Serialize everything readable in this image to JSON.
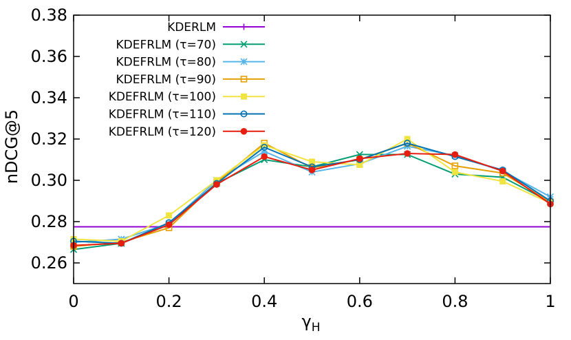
{
  "chart_data": {
    "type": "line",
    "xlabel": "γ",
    "xlabel_subscript": "H",
    "ylabel": "nDCG@5",
    "xlim": [
      0,
      1
    ],
    "ylim": [
      0.25,
      0.38
    ],
    "xticks": [
      0,
      0.2,
      0.4,
      0.6,
      0.8,
      1
    ],
    "xtick_labels": [
      "0",
      "0.2",
      "0.4",
      "0.6",
      "0.8",
      "1"
    ],
    "yticks": [
      0.26,
      0.28,
      0.3,
      0.32,
      0.34,
      0.36,
      0.38
    ],
    "ytick_labels": [
      "0.26",
      "0.28",
      "0.30",
      "0.32",
      "0.34",
      "0.36",
      "0.38"
    ],
    "legend_position": "top-left",
    "x": [
      0,
      0.1,
      0.2,
      0.3,
      0.4,
      0.5,
      0.6,
      0.7,
      0.8,
      0.9,
      1.0
    ],
    "series": [
      {
        "name": "KDERLM",
        "color": "#9400d3",
        "marker": "plus",
        "baseline": 0.2775
      },
      {
        "name": "KDEFRLM (τ=70)",
        "color": "#009e73",
        "marker": "x",
        "values": [
          0.2665,
          0.2695,
          0.2785,
          0.2985,
          0.31,
          0.3065,
          0.3125,
          0.3125,
          0.303,
          0.3015,
          0.2895
        ]
      },
      {
        "name": "KDEFRLM (τ=80)",
        "color": "#56b4e9",
        "marker": "star",
        "values": [
          0.27,
          0.2715,
          0.279,
          0.3,
          0.314,
          0.304,
          0.308,
          0.3165,
          0.312,
          0.3045,
          0.292
        ]
      },
      {
        "name": "KDEFRLM (τ=90)",
        "color": "#e69f00",
        "marker": "square-open",
        "values": [
          0.268,
          0.27,
          0.277,
          0.299,
          0.318,
          0.306,
          0.31,
          0.318,
          0.307,
          0.3035,
          0.2895
        ]
      },
      {
        "name": "KDEFRLM (τ=100)",
        "color": "#f0e442",
        "marker": "square-filled",
        "values": [
          0.2715,
          0.2705,
          0.283,
          0.3,
          0.317,
          0.309,
          0.3075,
          0.32,
          0.304,
          0.2995,
          0.289
        ]
      },
      {
        "name": "KDEFRLM (τ=110)",
        "color": "#0072b2",
        "marker": "circle-open",
        "values": [
          0.2705,
          0.2695,
          0.2795,
          0.2985,
          0.316,
          0.3065,
          0.31,
          0.318,
          0.3115,
          0.305,
          0.29
        ]
      },
      {
        "name": "KDEFRLM (τ=120)",
        "color": "#e51e10",
        "marker": "circle-filled",
        "values": [
          0.2685,
          0.2695,
          0.2785,
          0.298,
          0.3115,
          0.305,
          0.3105,
          0.313,
          0.3125,
          0.3045,
          0.2885
        ]
      }
    ]
  }
}
